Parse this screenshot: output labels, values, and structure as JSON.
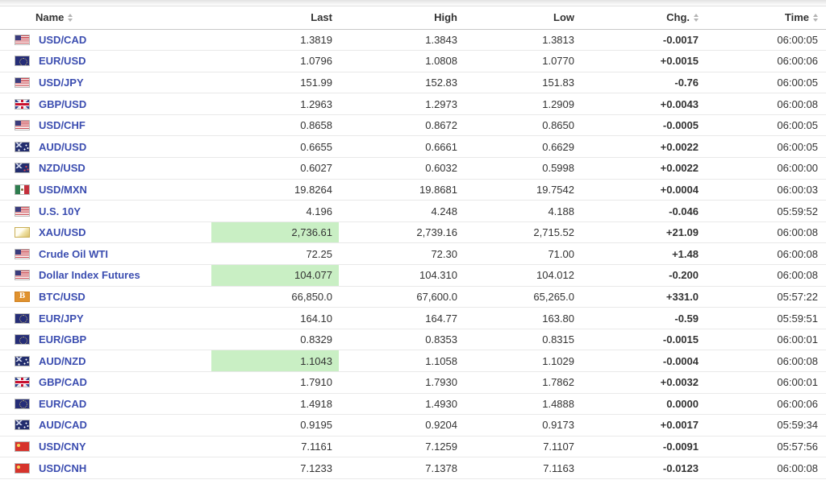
{
  "header": {
    "columns": [
      {
        "label": "Name",
        "sortable": true
      },
      {
        "label": "Last",
        "sortable": false
      },
      {
        "label": "High",
        "sortable": false
      },
      {
        "label": "Low",
        "sortable": false
      },
      {
        "label": "Chg.",
        "sortable": true
      },
      {
        "label": "Time",
        "sortable": true
      }
    ]
  },
  "rows": [
    {
      "icon": "us-flag-icon",
      "name": "USD/CAD",
      "last": "1.3819",
      "last_highlight": false,
      "high": "1.3843",
      "low": "1.3813",
      "chg": "-0.0017",
      "chg_dir": "down",
      "time": "06:00:05"
    },
    {
      "icon": "eu-flag-icon",
      "name": "EUR/USD",
      "last": "1.0796",
      "last_highlight": false,
      "high": "1.0808",
      "low": "1.0770",
      "chg": "+0.0015",
      "chg_dir": "up",
      "time": "06:00:06"
    },
    {
      "icon": "us-flag-icon",
      "name": "USD/JPY",
      "last": "151.99",
      "last_highlight": false,
      "high": "152.83",
      "low": "151.83",
      "chg": "-0.76",
      "chg_dir": "down",
      "time": "06:00:05"
    },
    {
      "icon": "uk-flag-icon",
      "name": "GBP/USD",
      "last": "1.2963",
      "last_highlight": false,
      "high": "1.2973",
      "low": "1.2909",
      "chg": "+0.0043",
      "chg_dir": "up",
      "time": "06:00:08"
    },
    {
      "icon": "us-flag-icon",
      "name": "USD/CHF",
      "last": "0.8658",
      "last_highlight": false,
      "high": "0.8672",
      "low": "0.8650",
      "chg": "-0.0005",
      "chg_dir": "down",
      "time": "06:00:05"
    },
    {
      "icon": "australia-flag-icon",
      "name": "AUD/USD",
      "last": "0.6655",
      "last_highlight": false,
      "high": "0.6661",
      "low": "0.6629",
      "chg": "+0.0022",
      "chg_dir": "up",
      "time": "06:00:05"
    },
    {
      "icon": "new-zealand-flag-icon",
      "name": "NZD/USD",
      "last": "0.6027",
      "last_highlight": false,
      "high": "0.6032",
      "low": "0.5998",
      "chg": "+0.0022",
      "chg_dir": "up",
      "time": "06:00:00"
    },
    {
      "icon": "mexico-flag-icon",
      "name": "USD/MXN",
      "last": "19.8264",
      "last_highlight": false,
      "high": "19.8681",
      "low": "19.7542",
      "chg": "+0.0004",
      "chg_dir": "up",
      "time": "06:00:03"
    },
    {
      "icon": "us-flag-icon",
      "name": "U.S. 10Y",
      "last": "4.196",
      "last_highlight": false,
      "high": "4.248",
      "low": "4.188",
      "chg": "-0.046",
      "chg_dir": "down",
      "time": "05:59:52"
    },
    {
      "icon": "gold-bar-icon",
      "name": "XAU/USD",
      "last": "2,736.61",
      "last_highlight": true,
      "high": "2,739.16",
      "low": "2,715.52",
      "chg": "+21.09",
      "chg_dir": "up",
      "time": "06:00:08"
    },
    {
      "icon": "us-flag-icon",
      "name": "Crude Oil WTI",
      "last": "72.25",
      "last_highlight": false,
      "high": "72.30",
      "low": "71.00",
      "chg": "+1.48",
      "chg_dir": "up",
      "time": "06:00:08"
    },
    {
      "icon": "us-flag-icon",
      "name": "Dollar Index Futures",
      "last": "104.077",
      "last_highlight": true,
      "high": "104.310",
      "low": "104.012",
      "chg": "-0.200",
      "chg_dir": "down",
      "time": "06:00:08"
    },
    {
      "icon": "bitcoin-icon",
      "name": "BTC/USD",
      "last": "66,850.0",
      "last_highlight": false,
      "high": "67,600.0",
      "low": "65,265.0",
      "chg": "+331.0",
      "chg_dir": "up",
      "time": "05:57:22"
    },
    {
      "icon": "eu-flag-icon",
      "name": "EUR/JPY",
      "last": "164.10",
      "last_highlight": false,
      "high": "164.77",
      "low": "163.80",
      "chg": "-0.59",
      "chg_dir": "down",
      "time": "05:59:51"
    },
    {
      "icon": "eu-flag-icon",
      "name": "EUR/GBP",
      "last": "0.8329",
      "last_highlight": false,
      "high": "0.8353",
      "low": "0.8315",
      "chg": "-0.0015",
      "chg_dir": "down",
      "time": "06:00:01"
    },
    {
      "icon": "australia-flag-icon",
      "name": "AUD/NZD",
      "last": "1.1043",
      "last_highlight": true,
      "high": "1.1058",
      "low": "1.1029",
      "chg": "-0.0004",
      "chg_dir": "down",
      "time": "06:00:08"
    },
    {
      "icon": "uk-flag-icon",
      "name": "GBP/CAD",
      "last": "1.7910",
      "last_highlight": false,
      "high": "1.7930",
      "low": "1.7862",
      "chg": "+0.0032",
      "chg_dir": "up",
      "time": "06:00:01"
    },
    {
      "icon": "eu-flag-icon",
      "name": "EUR/CAD",
      "last": "1.4918",
      "last_highlight": false,
      "high": "1.4930",
      "low": "1.4888",
      "chg": "0.0000",
      "chg_dir": "flat",
      "time": "06:00:06"
    },
    {
      "icon": "australia-flag-icon",
      "name": "AUD/CAD",
      "last": "0.9195",
      "last_highlight": false,
      "high": "0.9204",
      "low": "0.9173",
      "chg": "+0.0017",
      "chg_dir": "up",
      "time": "05:59:34"
    },
    {
      "icon": "china-flag-icon",
      "name": "USD/CNY",
      "last": "7.1161",
      "last_highlight": false,
      "high": "7.1259",
      "low": "7.1107",
      "chg": "-0.0091",
      "chg_dir": "down",
      "time": "05:57:56"
    },
    {
      "icon": "china-flag-icon",
      "name": "USD/CNH",
      "last": "7.1233",
      "last_highlight": false,
      "high": "7.1378",
      "low": "7.1163",
      "chg": "-0.0123",
      "chg_dir": "down",
      "time": "06:00:08"
    }
  ],
  "colors": {
    "name_link": "#3b4db0",
    "positive": "#3fa33c",
    "negative": "#d32f2f",
    "neutral": "#000000",
    "highlight": "#c9efc4"
  }
}
